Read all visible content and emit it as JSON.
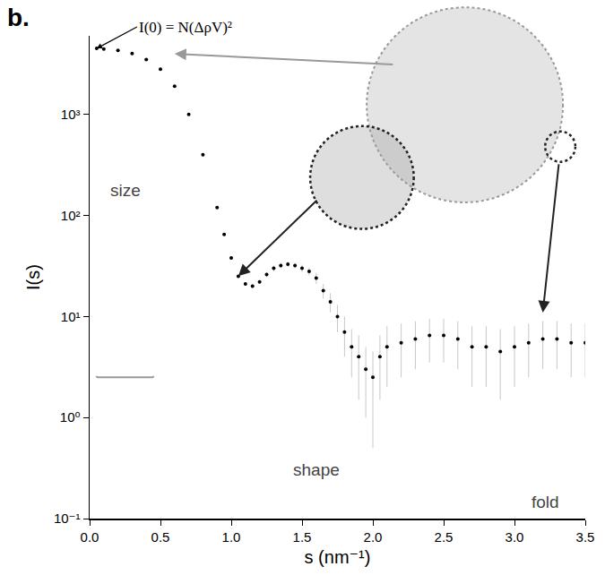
{
  "chart_data": {
    "type": "scatter",
    "xlabel": "s (nm⁻¹)",
    "ylabel": "I(s)",
    "log": "y",
    "grid": false,
    "color": "#000000",
    "marker": "circle",
    "annotations": [
      "b.",
      "I(0) = N(ΔρV)²",
      "size",
      "shape",
      "fold"
    ],
    "x": [
      0.05,
      0.1,
      0.2,
      0.3,
      0.4,
      0.5,
      0.6,
      0.7,
      0.8,
      0.9,
      0.95,
      1.0,
      1.05,
      1.1,
      1.15,
      1.2,
      1.25,
      1.3,
      1.35,
      1.4,
      1.45,
      1.5,
      1.55,
      1.6,
      1.65,
      1.7,
      1.75,
      1.8,
      1.85,
      1.9,
      1.95,
      2.0,
      2.05,
      2.1,
      2.2,
      2.3,
      2.4,
      2.5,
      2.6,
      2.7,
      2.8,
      2.9,
      3.0,
      3.1,
      3.2,
      3.3,
      3.4,
      3.5
    ],
    "values": [
      4500,
      4450,
      4300,
      4000,
      3500,
      2800,
      1900,
      1000,
      400,
      120,
      65,
      38,
      25,
      21,
      20,
      22,
      26,
      30,
      32,
      33,
      32,
      30,
      28,
      24,
      18,
      14,
      10,
      7,
      5,
      4,
      3,
      2.5,
      4,
      5,
      5.5,
      6,
      6.5,
      6.5,
      6,
      5,
      5,
      4.5,
      5,
      5.5,
      6,
      6,
      5.5,
      5.5
    ],
    "errors": [
      20,
      20,
      20,
      20,
      20,
      15,
      10,
      6,
      3,
      1,
      0.8,
      0.6,
      0.6,
      0.8,
      1,
      1,
      1.5,
      2,
      2,
      2,
      2,
      2.5,
      2.5,
      3,
      3,
      3,
      3,
      3,
      2.5,
      2.5,
      2,
      2,
      2.5,
      3,
      3,
      3,
      3,
      3,
      3,
      3,
      3,
      3,
      3,
      3,
      3,
      3,
      3,
      3
    ],
    "xlim": [
      0,
      3.5
    ],
    "xticks": [
      {
        "value": 0,
        "label": "0.0"
      },
      {
        "value": 0.5,
        "label": "0.5"
      },
      {
        "value": 1,
        "label": "1.0"
      },
      {
        "value": 1.5,
        "label": "1.5"
      },
      {
        "value": 2,
        "label": "2.0"
      },
      {
        "value": 2.5,
        "label": "2.5"
      },
      {
        "value": 3,
        "label": "3.0"
      },
      {
        "value": 3.5,
        "label": "3.5"
      }
    ],
    "ylim": [
      0.1,
      6000
    ],
    "yticks": [
      {
        "value": 0.1,
        "label": "10⁻¹"
      },
      {
        "value": 1,
        "label": "10⁰"
      },
      {
        "value": 10,
        "label": "10¹"
      },
      {
        "value": 100,
        "label": "10²"
      },
      {
        "value": 1000,
        "label": "10³"
      }
    ]
  }
}
